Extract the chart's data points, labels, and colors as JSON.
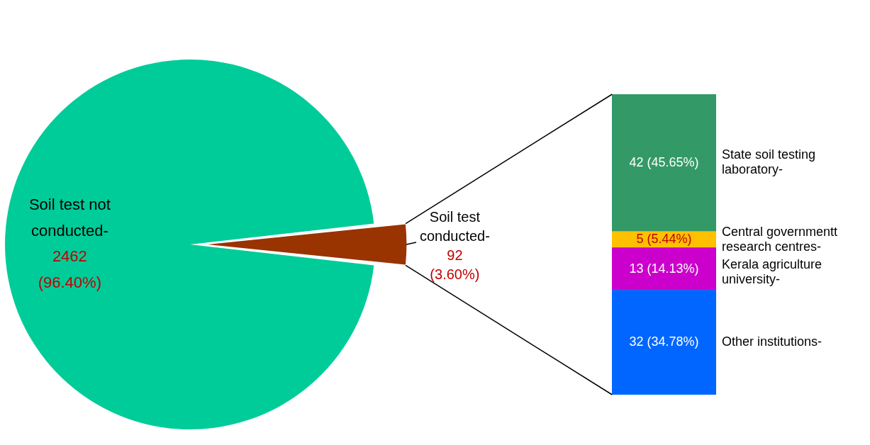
{
  "chart_data": [
    {
      "type": "pie",
      "categories": [
        "Soil test not conducted-",
        "Soil test conducted-"
      ],
      "values": [
        2462,
        92
      ],
      "colors": [
        "#00cc99",
        "#993300"
      ],
      "value_labels": [
        "2462 (96.40%)",
        "92 (3.60%)"
      ]
    },
    {
      "type": "bar",
      "stacked": true,
      "categories": [
        null
      ],
      "series": [
        {
          "name": "Other institutions-",
          "color": "#0066ff",
          "values": [
            32
          ],
          "value_labels": [
            "32 (34.78%)"
          ]
        },
        {
          "name": "Kerala agriculture university-",
          "color": "#cc00cc",
          "values": [
            13
          ],
          "value_labels": [
            "13 (14.13%)"
          ]
        },
        {
          "name": "Central governmentt research centres-",
          "color": "#ffc000",
          "values": [
            5
          ],
          "value_labels": [
            "5 (5.44%)"
          ]
        },
        {
          "name": "State soil testing laboratory-",
          "color": "#339966",
          "values": [
            42
          ],
          "value_labels": [
            "42 (45.65%)"
          ]
        }
      ]
    }
  ]
}
